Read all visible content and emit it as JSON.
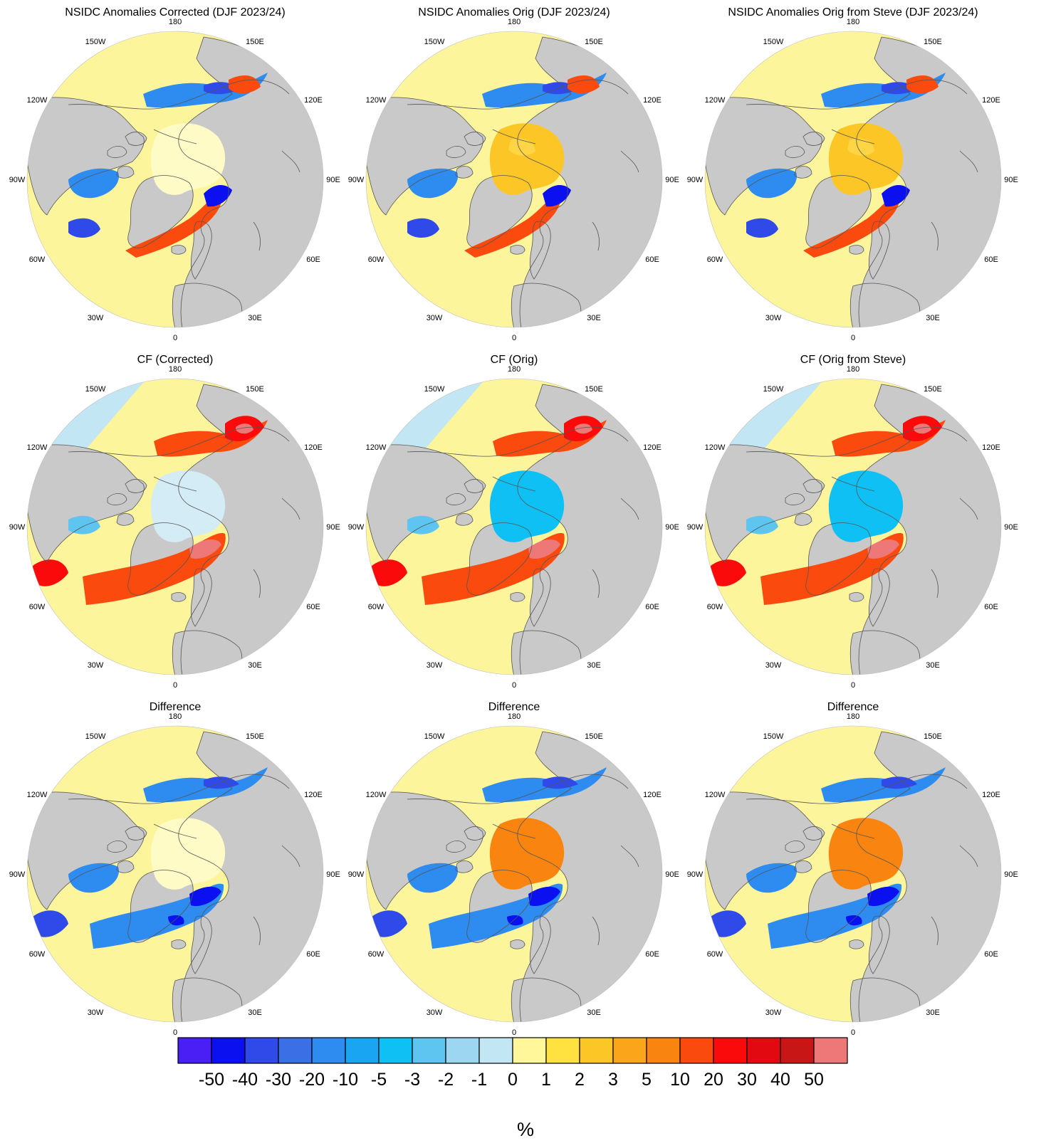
{
  "figure": {
    "panels": [
      {
        "title": "NSIDC Anomalies Corrected (DJF 2023/24)",
        "scene": "anomaly",
        "arctic": "pale"
      },
      {
        "title": "NSIDC Anomalies Orig (DJF 2023/24)",
        "scene": "anomaly",
        "arctic": "gold"
      },
      {
        "title": "NSIDC Anomalies Orig from Steve (DJF 2023/24)",
        "scene": "anomaly",
        "arctic": "gold"
      },
      {
        "title": "CF (Corrected)",
        "scene": "cf",
        "arctic": "pale-blue"
      },
      {
        "title": "CF (Orig)",
        "scene": "cf",
        "arctic": "cyan"
      },
      {
        "title": "CF (Orig from Steve)",
        "scene": "cf",
        "arctic": "cyan"
      },
      {
        "title": "Difference",
        "scene": "diff",
        "arctic": "pale"
      },
      {
        "title": "Difference",
        "scene": "diff",
        "arctic": "orange"
      },
      {
        "title": "Difference",
        "scene": "diff",
        "arctic": "orange"
      }
    ],
    "longitude_labels": [
      "180",
      "150E",
      "120E",
      "90E",
      "60E",
      "30E",
      "0",
      "30W",
      "60W",
      "90W",
      "120W",
      "150W"
    ],
    "colorbar": {
      "ticks": [
        "-50",
        "-40",
        "-30",
        "-20",
        "-10",
        "-5",
        "-3",
        "-2",
        "-1",
        "0",
        "1",
        "2",
        "3",
        "5",
        "10",
        "20",
        "30",
        "40",
        "50"
      ],
      "colors": [
        "#4a1ff5",
        "#0a10f0",
        "#2f4ae8",
        "#3b6fe6",
        "#2e8bf0",
        "#1aa5f2",
        "#0fc0f5",
        "#5ec5f0",
        "#9dd6f0",
        "#c2e6f4",
        "#fff79a",
        "#ffe240",
        "#fcc726",
        "#fba51a",
        "#fa8410",
        "#fb4a0d",
        "#fa0a0a",
        "#e20a10",
        "#c81616",
        "#ee7878"
      ],
      "unit": "%"
    },
    "palette": {
      "land": "#c9c9c9",
      "ocean": "#fdf59c",
      "ice_edge_light": "#c2e6f4",
      "gold": "#fcc726",
      "cyan": "#0fc0f5",
      "orange": "#fa8410",
      "outline": "#555555"
    }
  }
}
